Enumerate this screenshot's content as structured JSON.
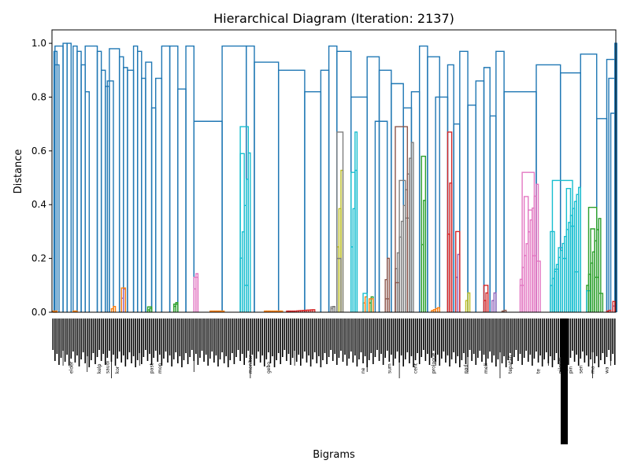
{
  "chart_data": {
    "type": "dendrogram",
    "title": "Hierarchical Diagram (Iteration: 2137)",
    "xlabel": "Bigrams",
    "ylabel": "Distance",
    "ylim": [
      0,
      1.05
    ],
    "yticks": [
      "0.0",
      "0.2",
      "0.4",
      "0.6",
      "0.8",
      "1.0"
    ],
    "leaf_count": 280,
    "grid": false,
    "above_threshold_color": "#1f77b4",
    "colors": {
      "C0": "#1f77b4",
      "C1": "#ff7f0e",
      "C2": "#2ca02c",
      "C3": "#d62728",
      "C4": "#9467bd",
      "C5": "#8c564b",
      "C6": "#e377c2",
      "C7": "#7f7f7f",
      "C8": "#bcbd22",
      "C9": "#17becf"
    },
    "clusters": [
      {
        "start": 0,
        "n": 3,
        "color": "C1",
        "height": 0.0
      },
      {
        "start": 4,
        "n": 1,
        "color": "C0",
        "height": 0.8
      },
      {
        "start": 10,
        "n": 3,
        "color": "C1",
        "height": 0.0
      },
      {
        "start": 29,
        "n": 3,
        "color": "C1",
        "height": 0.03
      },
      {
        "start": 34,
        "n": 3,
        "color": "C4",
        "height": 0.12
      },
      {
        "start": 47,
        "n": 3,
        "color": "C2",
        "height": 0.02
      },
      {
        "start": 60,
        "n": 3,
        "color": "C2",
        "height": 0.05
      },
      {
        "start": 70,
        "n": 3,
        "color": "C6",
        "height": 0.2
      },
      {
        "start": 78,
        "n": 8,
        "color": "C1",
        "height": 0.0
      },
      {
        "start": 93,
        "n": 6,
        "color": "C9",
        "height": 0.69
      },
      {
        "start": 105,
        "n": 10,
        "color": "C1",
        "height": 0.0
      },
      {
        "start": 116,
        "n": 15,
        "color": "C3",
        "height": 0.01
      },
      {
        "start": 138,
        "n": 3,
        "color": "C7",
        "height": 0.03
      },
      {
        "start": 141,
        "n": 4,
        "color": "C8",
        "height": 0.67
      },
      {
        "start": 148,
        "n": 4,
        "color": "C9",
        "height": 0.67
      },
      {
        "start": 154,
        "n": 3,
        "color": "C1",
        "height": 0.08
      },
      {
        "start": 157,
        "n": 3,
        "color": "C2",
        "height": 0.08
      },
      {
        "start": 165,
        "n": 3,
        "color": "C5",
        "height": 0.28
      },
      {
        "start": 170,
        "n": 10,
        "color": "C7",
        "height": 0.69
      },
      {
        "start": 183,
        "n": 3,
        "color": "C2",
        "height": 0.58
      },
      {
        "start": 188,
        "n": 5,
        "color": "C1",
        "height": 0.02
      },
      {
        "start": 196,
        "n": 3,
        "color": "C3",
        "height": 0.67
      },
      {
        "start": 200,
        "n": 3,
        "color": "C4",
        "height": 0.3
      },
      {
        "start": 205,
        "n": 3,
        "color": "C8",
        "height": 0.1
      },
      {
        "start": 214,
        "n": 3,
        "color": "C3",
        "height": 0.1
      },
      {
        "start": 218,
        "n": 3,
        "color": "C4",
        "height": 0.1
      },
      {
        "start": 223,
        "n": 3,
        "color": "C5",
        "height": 0.01
      },
      {
        "start": 232,
        "n": 10,
        "color": "C6",
        "height": 0.52
      },
      {
        "start": 247,
        "n": 16,
        "color": "C9",
        "height": 0.49
      },
      {
        "start": 265,
        "n": 8,
        "color": "C2",
        "height": 0.39
      },
      {
        "start": 275,
        "n": 3,
        "color": "C3",
        "height": 0.01
      },
      {
        "start": 278,
        "n": 2,
        "color": "C4",
        "height": 0.04
      }
    ],
    "upper_links": [
      [
        0.5,
        2,
        0.97
      ],
      [
        1,
        3,
        0.92
      ],
      [
        1,
        5,
        0.99
      ],
      [
        5,
        7,
        1.0
      ],
      [
        7,
        9,
        1.0
      ],
      [
        10,
        12,
        0.99
      ],
      [
        12,
        14,
        0.97
      ],
      [
        14,
        16,
        0.92
      ],
      [
        16,
        18,
        0.82
      ],
      [
        16,
        22,
        0.99
      ],
      [
        22,
        24,
        0.97
      ],
      [
        24,
        26,
        0.9
      ],
      [
        26,
        28,
        0.84
      ],
      [
        27,
        30,
        0.86
      ],
      [
        28,
        33,
        0.98
      ],
      [
        33,
        35,
        0.95
      ],
      [
        35,
        37,
        0.91
      ],
      [
        37,
        40,
        0.9
      ],
      [
        40,
        42,
        0.99
      ],
      [
        42,
        44,
        0.97
      ],
      [
        44,
        46,
        0.87
      ],
      [
        46,
        49,
        0.93
      ],
      [
        49,
        51,
        0.76
      ],
      [
        51,
        54,
        0.87
      ],
      [
        54,
        58,
        0.99
      ],
      [
        58,
        62,
        0.99
      ],
      [
        62,
        66,
        0.83
      ],
      [
        66,
        70,
        0.99
      ],
      [
        70,
        84,
        0.71
      ],
      [
        84,
        96,
        0.99
      ],
      [
        96,
        100,
        0.99
      ],
      [
        100,
        112,
        0.93
      ],
      [
        112,
        125,
        0.9
      ],
      [
        125,
        133,
        0.82
      ],
      [
        133,
        137,
        0.9
      ],
      [
        137,
        141,
        0.99
      ],
      [
        141,
        148,
        0.97
      ],
      [
        148,
        156,
        0.8
      ],
      [
        156,
        162,
        0.95
      ],
      [
        160,
        166,
        0.71
      ],
      [
        162,
        168,
        0.9
      ],
      [
        168,
        174,
        0.85
      ],
      [
        174,
        178,
        0.76
      ],
      [
        178,
        182,
        0.82
      ],
      [
        182,
        186,
        0.99
      ],
      [
        186,
        192,
        0.95
      ],
      [
        190,
        196,
        0.8
      ],
      [
        196,
        199,
        0.92
      ],
      [
        199,
        202,
        0.7
      ],
      [
        202,
        206,
        0.97
      ],
      [
        206,
        210,
        0.77
      ],
      [
        210,
        214,
        0.86
      ],
      [
        214,
        217,
        0.91
      ],
      [
        217,
        220,
        0.73
      ],
      [
        220,
        224,
        0.97
      ],
      [
        224,
        240,
        0.82
      ],
      [
        240,
        252,
        0.92
      ],
      [
        252,
        262,
        0.89
      ],
      [
        262,
        270,
        0.96
      ],
      [
        270,
        275,
        0.72
      ],
      [
        275,
        279,
        0.94
      ],
      [
        276,
        279,
        0.87
      ],
      [
        277,
        279,
        0.74
      ],
      [
        279,
        280,
        1.0
      ]
    ],
    "inner_links": [
      [
        0,
        2,
        0.0
      ],
      [
        34,
        36,
        0.09
      ],
      [
        47,
        49,
        0.02
      ],
      [
        60,
        62,
        0.03
      ],
      [
        70,
        72,
        0.13
      ],
      [
        93,
        95,
        0.59
      ],
      [
        95,
        97,
        0.1
      ],
      [
        93,
        97,
        0.69
      ],
      [
        138,
        140,
        0.02
      ],
      [
        141,
        143,
        0.2
      ],
      [
        141,
        144,
        0.67
      ],
      [
        148,
        150,
        0.52
      ],
      [
        150,
        151,
        0.67
      ],
      [
        154,
        156,
        0.07
      ],
      [
        157,
        159,
        0.05
      ],
      [
        165,
        167,
        0.05
      ],
      [
        170,
        172,
        0.11
      ],
      [
        172,
        175,
        0.49
      ],
      [
        175,
        177,
        0.35
      ],
      [
        170,
        176,
        0.69
      ],
      [
        183,
        185,
        0.58
      ],
      [
        196,
        198,
        0.67
      ],
      [
        200,
        202,
        0.3
      ],
      [
        214,
        216,
        0.1
      ],
      [
        232,
        234,
        0.1
      ],
      [
        234,
        236,
        0.43
      ],
      [
        236,
        238,
        0.38
      ],
      [
        238,
        240,
        0.21
      ],
      [
        240,
        242,
        0.19
      ],
      [
        233,
        239,
        0.52
      ],
      [
        247,
        249,
        0.3
      ],
      [
        249,
        251,
        0.16
      ],
      [
        251,
        253,
        0.24
      ],
      [
        253,
        255,
        0.2
      ],
      [
        255,
        257,
        0.46
      ],
      [
        257,
        259,
        0.32
      ],
      [
        259,
        261,
        0.15
      ],
      [
        248,
        258,
        0.49
      ],
      [
        265,
        267,
        0.08
      ],
      [
        267,
        269,
        0.31
      ],
      [
        269,
        271,
        0.13
      ],
      [
        271,
        273,
        0.07
      ],
      [
        266,
        270,
        0.39
      ],
      [
        278,
        279,
        0.04
      ]
    ],
    "leaf_labels_visible": [
      "elder",
      "kelp",
      "saudi",
      "kor",
      "past",
      "mon",
      "monitor",
      "gebo",
      "ne",
      "sum",
      "cent",
      "prologue",
      "pad",
      "mell",
      "tepatan",
      "te",
      "pilgrim",
      "pin",
      "sen",
      "ma",
      "wa"
    ]
  }
}
